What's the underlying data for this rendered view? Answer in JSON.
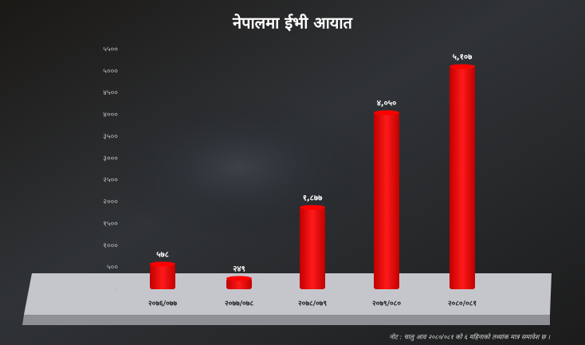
{
  "chart_data": {
    "type": "bar",
    "title": "नेपालमा ईभी आयात",
    "categories": [
      "२०७६/०७७",
      "२०७७/०७८",
      "२०७८/०७९",
      "२०७९/०८०",
      "२०८०/०८१"
    ],
    "values": [
      578,
      249,
      1877,
      4050,
      5107
    ],
    "value_labels": [
      "५७८",
      "२४९",
      "१,८७७",
      "४,०५०",
      "५,१०७"
    ],
    "color": "#ff0000",
    "ylim": [
      0,
      5500
    ],
    "yticks": [
      {
        "value": 0,
        "label": "०"
      },
      {
        "value": 500,
        "label": "५००"
      },
      {
        "value": 1000,
        "label": "१०००"
      },
      {
        "value": 1500,
        "label": "१५००"
      },
      {
        "value": 2000,
        "label": "२०००"
      },
      {
        "value": 2500,
        "label": "२५००"
      },
      {
        "value": 3000,
        "label": "३०००"
      },
      {
        "value": 3500,
        "label": "३५००"
      },
      {
        "value": 4000,
        "label": "४०००"
      },
      {
        "value": 4500,
        "label": "४५००"
      },
      {
        "value": 5000,
        "label": "५०००"
      },
      {
        "value": 5500,
        "label": "५५००"
      }
    ],
    "grid": false,
    "note": "नोट : चालु आव २०८०/०८१ को ६ महिनाको तथ्यांक मात्र समावेश छ ।"
  }
}
